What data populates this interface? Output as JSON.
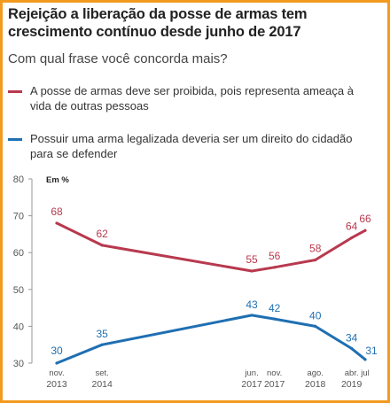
{
  "header": {
    "title": "Rejeição a liberação da posse de armas tem crescimento contínuo desde junho de 2017",
    "subtitle": "Com qual frase você concorda mais?"
  },
  "colors": {
    "border": "#f29a1e",
    "series_red": "#b8394f",
    "series_blue": "#1f6fb2",
    "axis": "#999999"
  },
  "chart_data": {
    "type": "line",
    "unit_label": "Em %",
    "ylim": [
      30,
      80
    ],
    "yticks": [
      30,
      40,
      50,
      60,
      70,
      80
    ],
    "grid": false,
    "legend_position": "top",
    "x": [
      "2013-11",
      "2014-09",
      "2017-06",
      "2017-11",
      "2018-08",
      "2019-04",
      "2019-07"
    ],
    "x_tick_labels": [
      [
        "nov.",
        "2013"
      ],
      [
        "set.",
        "2014"
      ],
      [
        "jun.",
        "2017"
      ],
      [
        "nov.",
        "2017"
      ],
      [
        "ago.",
        "2018"
      ],
      [
        "abr.",
        "2019"
      ],
      [
        "jul",
        ""
      ]
    ],
    "series": [
      {
        "name": "A posse de armas deve ser proibida, pois representa ameaça à vida de outras pessoas",
        "color": "#b8394f",
        "values": [
          68,
          62,
          55,
          56,
          58,
          64,
          66
        ]
      },
      {
        "name": "Possuir uma arma legalizada deveria ser um direito do cidadão para se defender",
        "color": "#1f6fb2",
        "values": [
          30,
          35,
          43,
          42,
          40,
          34,
          31
        ]
      }
    ]
  }
}
